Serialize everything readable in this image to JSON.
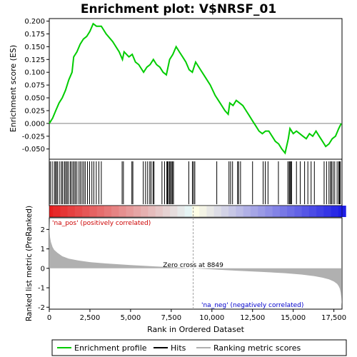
{
  "chart_data": [
    {
      "panel": "enrichment",
      "type": "line",
      "title": "Enrichment plot: V$NRSF_01",
      "ylabel": "Enrichment score (ES)",
      "xlim": [
        0,
        18000
      ],
      "ylim": [
        -0.07,
        0.205
      ],
      "yticks": [
        "0.200",
        "0.175",
        "0.150",
        "0.125",
        "0.100",
        "0.075",
        "0.050",
        "0.025",
        "0.000",
        "-0.025",
        "-0.050"
      ],
      "ytick_values": [
        0.2,
        0.175,
        0.15,
        0.125,
        0.1,
        0.075,
        0.05,
        0.025,
        0.0,
        -0.025,
        -0.05
      ],
      "series": [
        {
          "name": "Enrichment profile",
          "color": "#00cc00",
          "x": [
            0,
            200,
            400,
            600,
            800,
            1000,
            1200,
            1400,
            1500,
            1700,
            1900,
            2100,
            2300,
            2500,
            2700,
            2900,
            3200,
            3500,
            3900,
            4300,
            4500,
            4600,
            4900,
            5100,
            5300,
            5500,
            5800,
            6000,
            6200,
            6400,
            6600,
            6800,
            7000,
            7200,
            7400,
            7600,
            7800,
            8000,
            8200,
            8400,
            8600,
            8800,
            9000,
            9300,
            9600,
            9900,
            10200,
            10500,
            10800,
            11000,
            11100,
            11300,
            11500,
            11700,
            11900,
            12100,
            12300,
            12500,
            12700,
            12900,
            13100,
            13300,
            13500,
            13700,
            13900,
            14100,
            14300,
            14500,
            14700,
            14800,
            14900,
            15000,
            15200,
            15400,
            15600,
            15800,
            16000,
            16200,
            16400,
            16600,
            16800,
            17000,
            17200,
            17400,
            17600,
            17800,
            17950
          ],
          "y": [
            0.0,
            0.01,
            0.025,
            0.04,
            0.05,
            0.065,
            0.085,
            0.1,
            0.13,
            0.14,
            0.155,
            0.165,
            0.17,
            0.18,
            0.195,
            0.19,
            0.19,
            0.175,
            0.16,
            0.14,
            0.125,
            0.14,
            0.13,
            0.135,
            0.12,
            0.115,
            0.1,
            0.11,
            0.115,
            0.125,
            0.115,
            0.11,
            0.1,
            0.095,
            0.125,
            0.135,
            0.15,
            0.14,
            0.13,
            0.12,
            0.105,
            0.1,
            0.12,
            0.105,
            0.09,
            0.075,
            0.055,
            0.04,
            0.025,
            0.018,
            0.04,
            0.035,
            0.045,
            0.04,
            0.035,
            0.025,
            0.015,
            0.005,
            -0.005,
            -0.015,
            -0.02,
            -0.015,
            -0.015,
            -0.025,
            -0.035,
            -0.04,
            -0.05,
            -0.058,
            -0.03,
            -0.01,
            -0.015,
            -0.02,
            -0.015,
            -0.02,
            -0.025,
            -0.03,
            -0.02,
            -0.025,
            -0.015,
            -0.025,
            -0.035,
            -0.045,
            -0.04,
            -0.03,
            -0.025,
            -0.01,
            0.0
          ]
        }
      ]
    },
    {
      "panel": "hits",
      "type": "scatter",
      "series": [
        {
          "name": "Hits",
          "color": "#000000",
          "x": [
            60,
            180,
            310,
            380,
            450,
            520,
            650,
            760,
            830,
            940,
            1010,
            1090,
            1160,
            1280,
            1350,
            1450,
            1530,
            1610,
            1700,
            1830,
            1920,
            2020,
            2120,
            2210,
            2350,
            2480,
            2620,
            2740,
            2890,
            3050,
            3200,
            4480,
            4560,
            5080,
            5140,
            5780,
            5920,
            6050,
            6180,
            6260,
            6380,
            6440,
            6930,
            7090,
            7230,
            7270,
            7320,
            7400,
            7450,
            7520,
            7580,
            7640,
            8580,
            8800,
            8870,
            8950,
            10300,
            11050,
            11150,
            11270,
            11580,
            11640,
            11760,
            12500,
            13150,
            13280,
            13450,
            14090,
            14670,
            14750,
            14800,
            14850,
            14900,
            15200,
            15430,
            15700,
            15900,
            16100,
            16300,
            16900,
            17050,
            17200,
            17300,
            17350,
            17450,
            17550,
            17700,
            17800,
            17850,
            17900
          ]
        },
        {
          "name": "Ranking metric scores",
          "color": "#808080"
        }
      ]
    },
    {
      "panel": "ranked-metric",
      "type": "area",
      "xlabel": "Rank in Ordered Dataset",
      "ylabel": "Ranked list metric (PreRanked)",
      "xlim": [
        0,
        18000
      ],
      "ylim": [
        -2.1,
        2.6
      ],
      "xticks": [
        "0",
        "2,500",
        "5,000",
        "7,500",
        "10,000",
        "12,500",
        "15,000",
        "17,500"
      ],
      "xtick_values": [
        0,
        2500,
        5000,
        7500,
        10000,
        12500,
        15000,
        17500
      ],
      "yticks": [
        "2",
        "1",
        "0",
        "-1",
        "-2"
      ],
      "ytick_values": [
        2,
        1,
        0,
        -1,
        -2
      ],
      "x": [
        0,
        20,
        50,
        100,
        200,
        300,
        500,
        800,
        1200,
        1800,
        2500,
        3500,
        5000,
        6500,
        8000,
        8849,
        10000,
        11500,
        13000,
        14500,
        15500,
        16300,
        16800,
        17200,
        17500,
        17700,
        17800,
        17870,
        17920,
        17960,
        17990
      ],
      "values": [
        2.5,
        1.9,
        1.6,
        1.35,
        1.1,
        0.95,
        0.8,
        0.62,
        0.5,
        0.4,
        0.32,
        0.25,
        0.17,
        0.1,
        0.04,
        0.0,
        -0.05,
        -0.12,
        -0.18,
        -0.25,
        -0.32,
        -0.4,
        -0.48,
        -0.57,
        -0.68,
        -0.8,
        -0.92,
        -1.05,
        -1.25,
        -1.5,
        -1.9
      ],
      "color": "#b0b0b0",
      "zero_cross": 8849,
      "zero_cross_label": "Zero cross at 8849",
      "pos_label": "'na_pos' (positively correlated)",
      "neg_label": "'na_neg' (negatively correlated)",
      "pos_color": "#cc0000",
      "neg_color": "#0000cc"
    }
  ],
  "legend": {
    "items": [
      {
        "label": "Enrichment profile",
        "color": "#00cc00"
      },
      {
        "label": "Hits",
        "color": "#000000"
      },
      {
        "label": "Ranking metric scores",
        "color": "#b0b0b0"
      }
    ]
  }
}
